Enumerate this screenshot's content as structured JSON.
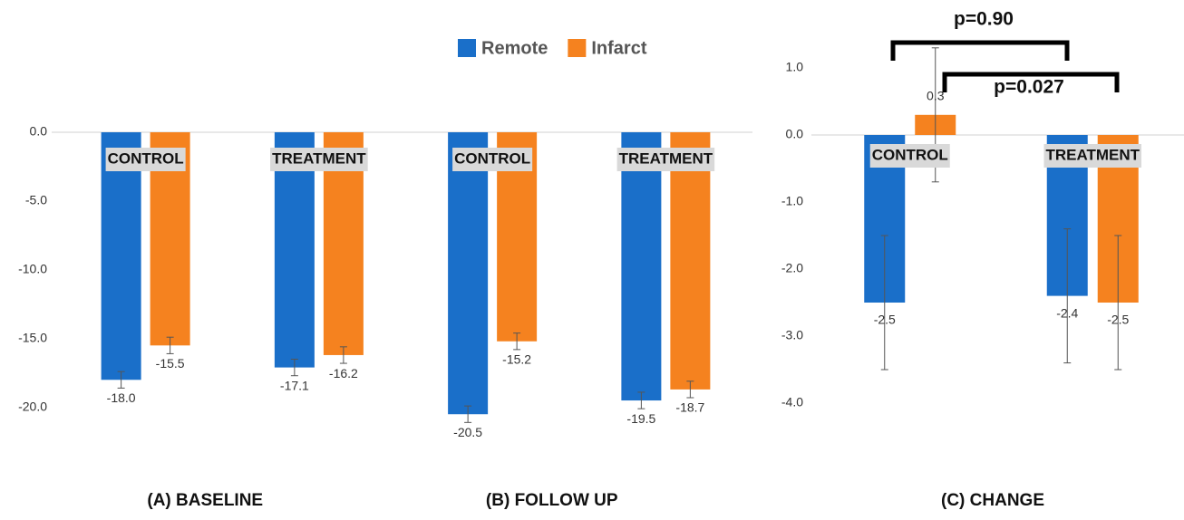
{
  "chart_data": [
    {
      "type": "bar",
      "categories": [
        "CONTROL",
        "TREATMENT",
        "CONTROL",
        "TREATMENT"
      ],
      "series": [
        {
          "name": "Remote",
          "color": "#1a6fc9",
          "values": [
            -18,
            -17.1,
            -20.5,
            -19.5
          ],
          "value_labels": [
            "-18.0",
            "-17.1",
            "-20.5",
            "-19.5"
          ],
          "errors": [
            0.6,
            0.6,
            0.6,
            0.6
          ]
        },
        {
          "name": "Infarct",
          "color": "#f5821f",
          "values": [
            -15.5,
            -16.2,
            -15.2,
            -18.7
          ],
          "value_labels": [
            "-15.5",
            "-16.2",
            "-15.2",
            "-18.7"
          ],
          "errors": [
            0.6,
            0.6,
            0.6,
            0.6
          ]
        }
      ],
      "ylim": [
        -22,
        0
      ],
      "yticks": [
        {
          "value": 0,
          "label": "0.0"
        },
        {
          "value": -5,
          "label": "-5.0"
        },
        {
          "value": -10,
          "label": "-10.0"
        },
        {
          "value": -15,
          "label": "-15.0"
        },
        {
          "value": -20,
          "label": "-20.0"
        }
      ],
      "annotations": [
        "(A) BASELINE",
        "(B) FOLLOW UP"
      ]
    },
    {
      "type": "bar",
      "title": "(C) CHANGE",
      "categories": [
        "CONTROL",
        "TREATMENT"
      ],
      "series": [
        {
          "color": "#1a6fc9",
          "values": [
            -2.5,
            -2.4
          ],
          "errors": [
            1.0,
            1.0
          ]
        },
        {
          "color": "#f5821f",
          "values": [
            0.3,
            -2.5
          ],
          "errors": [
            1.0,
            1.0
          ]
        }
      ],
      "ylim": [
        -4.5,
        1.5
      ],
      "yticks": [
        {
          "value": 1,
          "label": "1.0"
        },
        {
          "value": 0,
          "label": "0.0"
        },
        {
          "value": -1,
          "label": "-1.0"
        },
        {
          "value": -2,
          "label": "-2.0"
        },
        {
          "value": -3,
          "label": "-3.0"
        },
        {
          "value": -4,
          "label": "-4.0"
        }
      ],
      "annotations": [
        "p=0.90",
        "p=0.027"
      ]
    }
  ]
}
